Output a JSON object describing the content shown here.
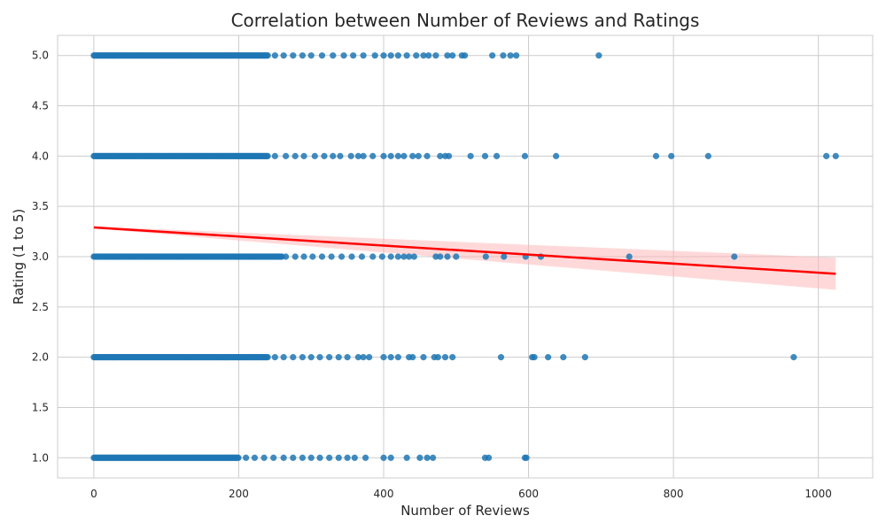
{
  "chart_data": {
    "type": "scatter",
    "title": "Correlation between Number of Reviews and Ratings",
    "xlabel": "Number of Reviews",
    "ylabel": "Rating (1 to 5)",
    "xlim": [
      -50,
      1075
    ],
    "ylim": [
      0.8,
      5.2
    ],
    "xticks": [
      0,
      200,
      400,
      600,
      800,
      1000
    ],
    "yticks": [
      1.0,
      1.5,
      2.0,
      2.5,
      3.0,
      3.5,
      4.0,
      4.5,
      5.0
    ],
    "grid": true,
    "legend": "none",
    "colors": {
      "points": "#1f77b4",
      "regression": "#ff0000",
      "band": "#ffb3b3",
      "grid": "#cccccc",
      "background": "#ffffff"
    },
    "series": [
      {
        "y": 5.0,
        "dense_up_to": 240,
        "x": [
          250,
          262,
          275,
          288,
          300,
          315,
          330,
          345,
          358,
          372,
          388,
          400,
          410,
          420,
          432,
          445,
          455,
          462,
          472,
          488,
          495,
          508,
          512,
          550,
          565,
          575,
          583,
          697
        ]
      },
      {
        "y": 4.0,
        "dense_up_to": 240,
        "x": [
          250,
          265,
          278,
          290,
          305,
          318,
          330,
          340,
          355,
          365,
          372,
          385,
          400,
          410,
          420,
          428,
          440,
          448,
          460,
          478,
          485,
          490,
          520,
          540,
          556,
          595,
          638,
          776,
          797,
          848,
          1011,
          1024
        ]
      },
      {
        "y": 3.0,
        "dense_up_to": 260,
        "x": [
          265,
          278,
          290,
          302,
          315,
          328,
          342,
          356,
          370,
          385,
          398,
          410,
          420,
          428,
          435,
          442,
          472,
          478,
          488,
          500,
          541,
          566,
          596,
          617,
          739,
          884
        ]
      },
      {
        "y": 2.0,
        "dense_up_to": 240,
        "x": [
          250,
          262,
          275,
          288,
          300,
          312,
          325,
          338,
          350,
          365,
          372,
          380,
          400,
          410,
          420,
          435,
          440,
          455,
          470,
          475,
          485,
          495,
          562,
          605,
          608,
          627,
          648,
          678,
          966
        ]
      },
      {
        "y": 1.0,
        "dense_up_to": 200,
        "x": [
          210,
          222,
          235,
          248,
          262,
          275,
          288,
          300,
          312,
          325,
          338,
          350,
          360,
          375,
          400,
          410,
          432,
          450,
          460,
          468,
          540,
          545,
          595,
          597
        ]
      }
    ],
    "regression": {
      "x": [
        0,
        1024
      ],
      "y": [
        3.29,
        2.83
      ],
      "ci_upper": [
        3.3,
        2.99
      ],
      "ci_lower": [
        3.28,
        2.67
      ]
    }
  }
}
